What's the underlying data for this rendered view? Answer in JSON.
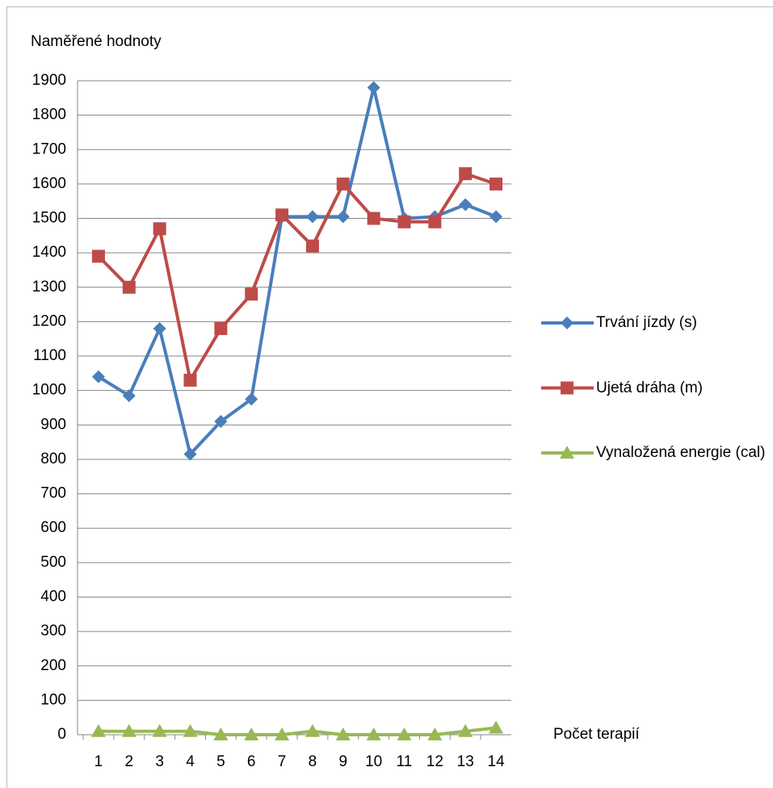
{
  "chart_data": {
    "type": "line",
    "title": "Naměřené hodnoty",
    "x_label": "Počet terapií",
    "categories": [
      "1",
      "2",
      "3",
      "4",
      "5",
      "6",
      "7",
      "8",
      "9",
      "10",
      "11",
      "12",
      "13",
      "14"
    ],
    "series": [
      {
        "name": "Trvání jízdy (s)",
        "color": "#4a7ebb",
        "marker": "diamond",
        "values": [
          1040,
          985,
          1180,
          815,
          910,
          975,
          1505,
          1505,
          1505,
          1880,
          1500,
          1505,
          1540,
          1505
        ]
      },
      {
        "name": "Ujetá dráha (m)",
        "color": "#be4b48",
        "marker": "square",
        "values": [
          1390,
          1300,
          1470,
          1030,
          1180,
          1280,
          1510,
          1420,
          1600,
          1500,
          1490,
          1490,
          1630,
          1600
        ]
      },
      {
        "name": "Vynaložená energie (cal)",
        "color": "#98b954",
        "marker": "triangle",
        "values": [
          10,
          10,
          10,
          10,
          0,
          0,
          0,
          10,
          0,
          0,
          0,
          0,
          10,
          20
        ]
      }
    ],
    "ylim": [
      0,
      1900
    ],
    "yticks": [
      0,
      100,
      200,
      300,
      400,
      500,
      600,
      700,
      800,
      900,
      1000,
      1100,
      1200,
      1300,
      1400,
      1500,
      1600,
      1700,
      1800,
      1900
    ],
    "grid": true,
    "legend": "right"
  }
}
